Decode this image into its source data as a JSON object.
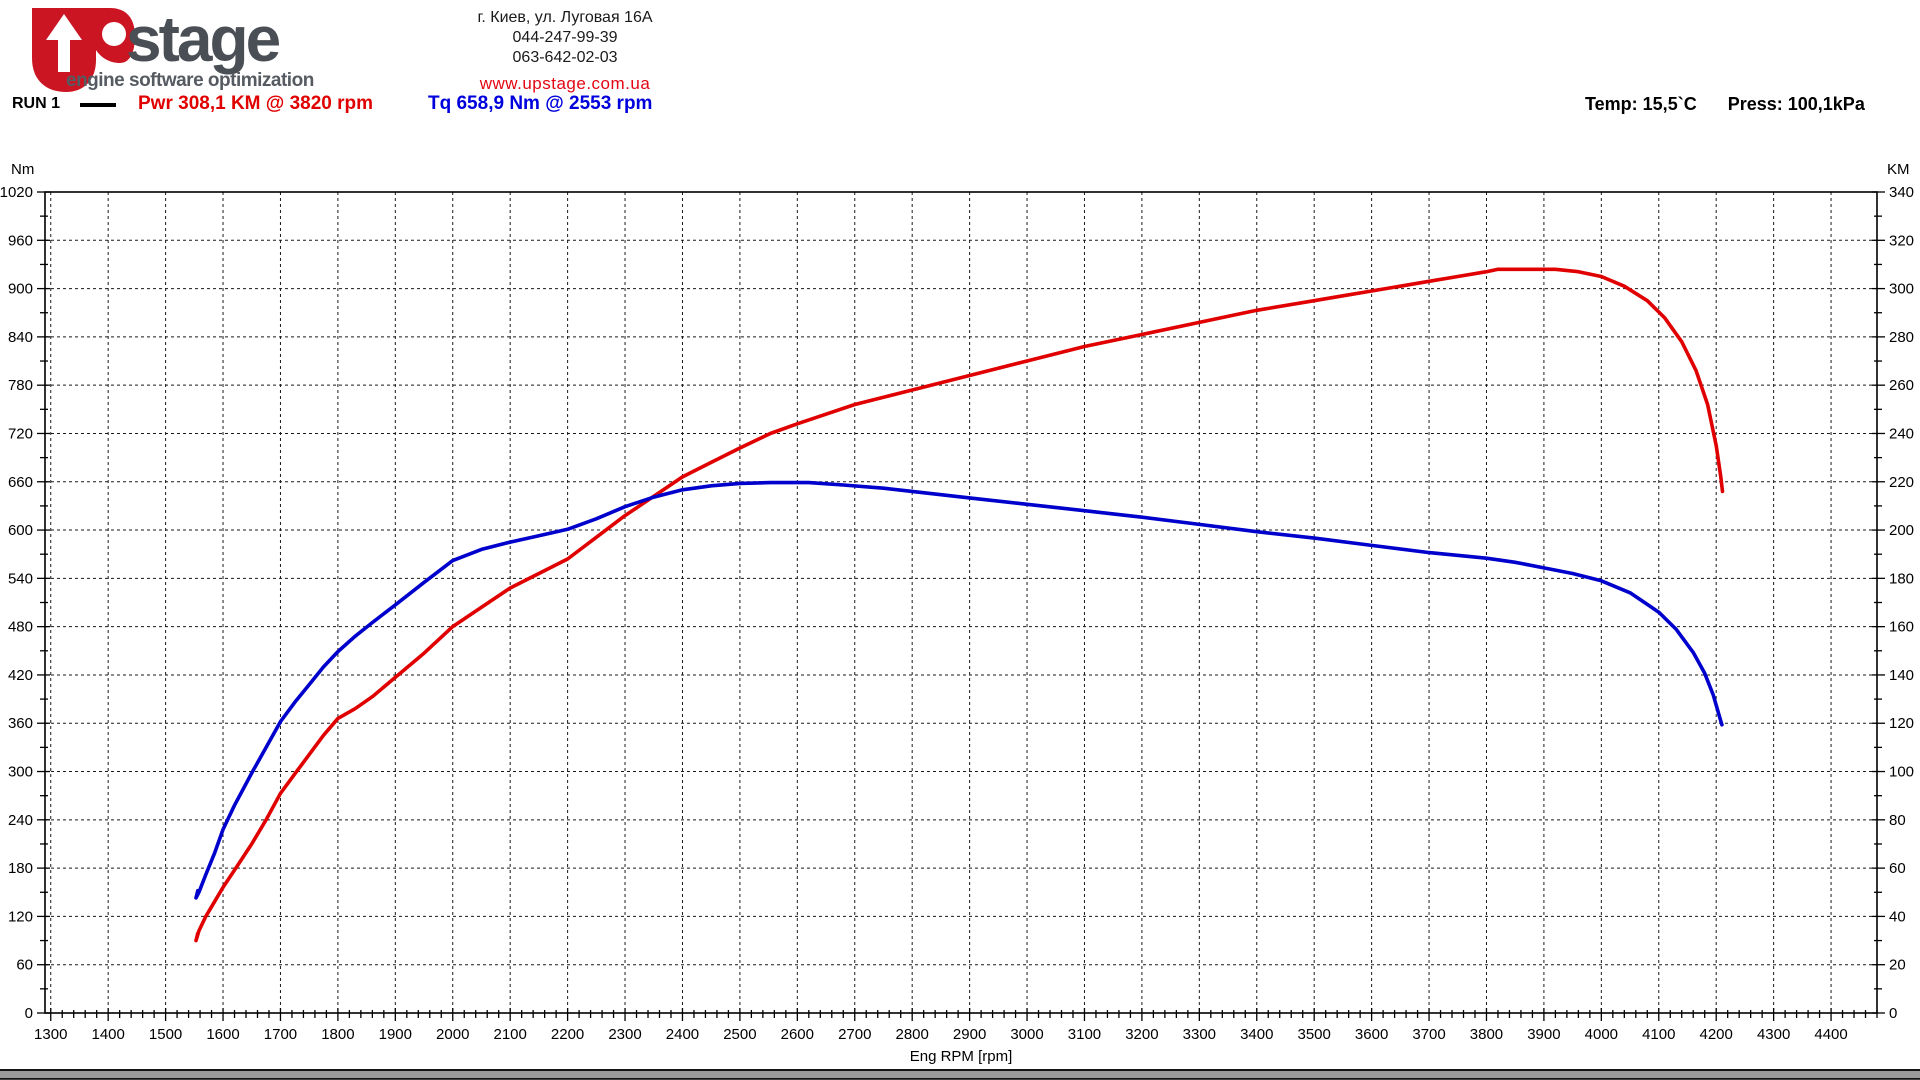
{
  "header": {
    "brand": "stage",
    "tagline": "engine software optimization",
    "contact": {
      "address": "г. Киев, ул. Луговая 16А",
      "phone1": "044-247-99-39",
      "phone2": "063-642-02-03",
      "website": "www.upstage.com.ua"
    },
    "conditions": {
      "temperature": "Temp: 15,5`C",
      "pressure": "Press: 100,1kPa"
    }
  },
  "legend": {
    "run": "RUN 1",
    "power_readout": "Pwr  308,1 KM @ 3820 rpm",
    "torque_readout": "Tq 658,9 Nm @ 2553 rpm"
  },
  "colors": {
    "power": "#e00000",
    "torque": "#0000cc",
    "brand_red": "#cc1522",
    "brand_gray": "#4a4f55",
    "grid": "#1a1a1a",
    "frame": "#000000"
  },
  "chart_data": {
    "type": "line",
    "title": "",
    "xlabel": "Eng RPM [rpm]",
    "grid": "dashed",
    "x_axis": {
      "min": 1290,
      "max": 4480,
      "label_start": 1300,
      "label_end": 4400,
      "major_step": 100,
      "minor_step": 20
    },
    "left_axis": {
      "title": "Nm",
      "min": 0,
      "max": 1020,
      "major_step": 60,
      "minor_step": 30
    },
    "right_axis": {
      "title": "KM",
      "min": 0,
      "max": 340,
      "major_step": 20,
      "minor_step": 10
    },
    "series": [
      {
        "name": "Power",
        "unit": "KM",
        "axis": "right",
        "color": "#e00000",
        "peak": {
          "value": 308.1,
          "unit": "KM",
          "rpm": 3820
        },
        "points": [
          [
            1556,
            33
          ],
          [
            1553,
            30
          ],
          [
            1558,
            34
          ],
          [
            1570,
            40
          ],
          [
            1585,
            46
          ],
          [
            1600,
            52
          ],
          [
            1625,
            61
          ],
          [
            1650,
            70
          ],
          [
            1675,
            80
          ],
          [
            1700,
            91
          ],
          [
            1725,
            99
          ],
          [
            1750,
            107
          ],
          [
            1775,
            115
          ],
          [
            1800,
            122
          ],
          [
            1830,
            126
          ],
          [
            1860,
            131
          ],
          [
            1900,
            139
          ],
          [
            1950,
            149
          ],
          [
            2000,
            160
          ],
          [
            2050,
            168
          ],
          [
            2100,
            176
          ],
          [
            2150,
            182
          ],
          [
            2200,
            188
          ],
          [
            2250,
            197
          ],
          [
            2300,
            206
          ],
          [
            2350,
            214
          ],
          [
            2400,
            222
          ],
          [
            2450,
            228
          ],
          [
            2500,
            234
          ],
          [
            2553,
            240
          ],
          [
            2600,
            244
          ],
          [
            2650,
            248
          ],
          [
            2700,
            252
          ],
          [
            2750,
            255
          ],
          [
            2800,
            258
          ],
          [
            2900,
            264
          ],
          [
            3000,
            270
          ],
          [
            3100,
            276
          ],
          [
            3200,
            281
          ],
          [
            3300,
            286
          ],
          [
            3400,
            291
          ],
          [
            3500,
            295
          ],
          [
            3550,
            297
          ],
          [
            3600,
            299
          ],
          [
            3650,
            301
          ],
          [
            3700,
            303
          ],
          [
            3750,
            305
          ],
          [
            3800,
            307
          ],
          [
            3820,
            308
          ],
          [
            3870,
            308
          ],
          [
            3920,
            308
          ],
          [
            3960,
            307
          ],
          [
            4000,
            305
          ],
          [
            4040,
            301
          ],
          [
            4080,
            295
          ],
          [
            4110,
            288
          ],
          [
            4140,
            278
          ],
          [
            4165,
            266
          ],
          [
            4185,
            252
          ],
          [
            4200,
            235
          ],
          [
            4208,
            222
          ],
          [
            4211,
            216
          ]
        ]
      },
      {
        "name": "Torque",
        "unit": "Nm",
        "axis": "left",
        "color": "#0000cc",
        "peak": {
          "value": 658.9,
          "unit": "Nm",
          "rpm": 2553
        },
        "points": [
          [
            1556,
            152
          ],
          [
            1553,
            143
          ],
          [
            1558,
            150
          ],
          [
            1570,
            172
          ],
          [
            1585,
            198
          ],
          [
            1600,
            228
          ],
          [
            1620,
            258
          ],
          [
            1650,
            298
          ],
          [
            1675,
            330
          ],
          [
            1700,
            362
          ],
          [
            1725,
            386
          ],
          [
            1750,
            408
          ],
          [
            1775,
            430
          ],
          [
            1800,
            449
          ],
          [
            1830,
            468
          ],
          [
            1860,
            485
          ],
          [
            1900,
            507
          ],
          [
            1950,
            535
          ],
          [
            2000,
            562
          ],
          [
            2050,
            576
          ],
          [
            2100,
            585
          ],
          [
            2150,
            593
          ],
          [
            2200,
            601
          ],
          [
            2250,
            614
          ],
          [
            2300,
            629
          ],
          [
            2350,
            641
          ],
          [
            2400,
            650
          ],
          [
            2450,
            655
          ],
          [
            2500,
            658
          ],
          [
            2553,
            659
          ],
          [
            2620,
            659
          ],
          [
            2680,
            656
          ],
          [
            2750,
            652
          ],
          [
            2800,
            648
          ],
          [
            2900,
            640
          ],
          [
            3000,
            632
          ],
          [
            3100,
            624
          ],
          [
            3200,
            616
          ],
          [
            3300,
            607
          ],
          [
            3400,
            598
          ],
          [
            3500,
            590
          ],
          [
            3600,
            581
          ],
          [
            3700,
            572
          ],
          [
            3800,
            565
          ],
          [
            3850,
            560
          ],
          [
            3900,
            553
          ],
          [
            3950,
            546
          ],
          [
            4000,
            537
          ],
          [
            4050,
            522
          ],
          [
            4100,
            498
          ],
          [
            4130,
            477
          ],
          [
            4160,
            448
          ],
          [
            4180,
            422
          ],
          [
            4195,
            395
          ],
          [
            4205,
            370
          ],
          [
            4210,
            358
          ]
        ]
      }
    ]
  }
}
